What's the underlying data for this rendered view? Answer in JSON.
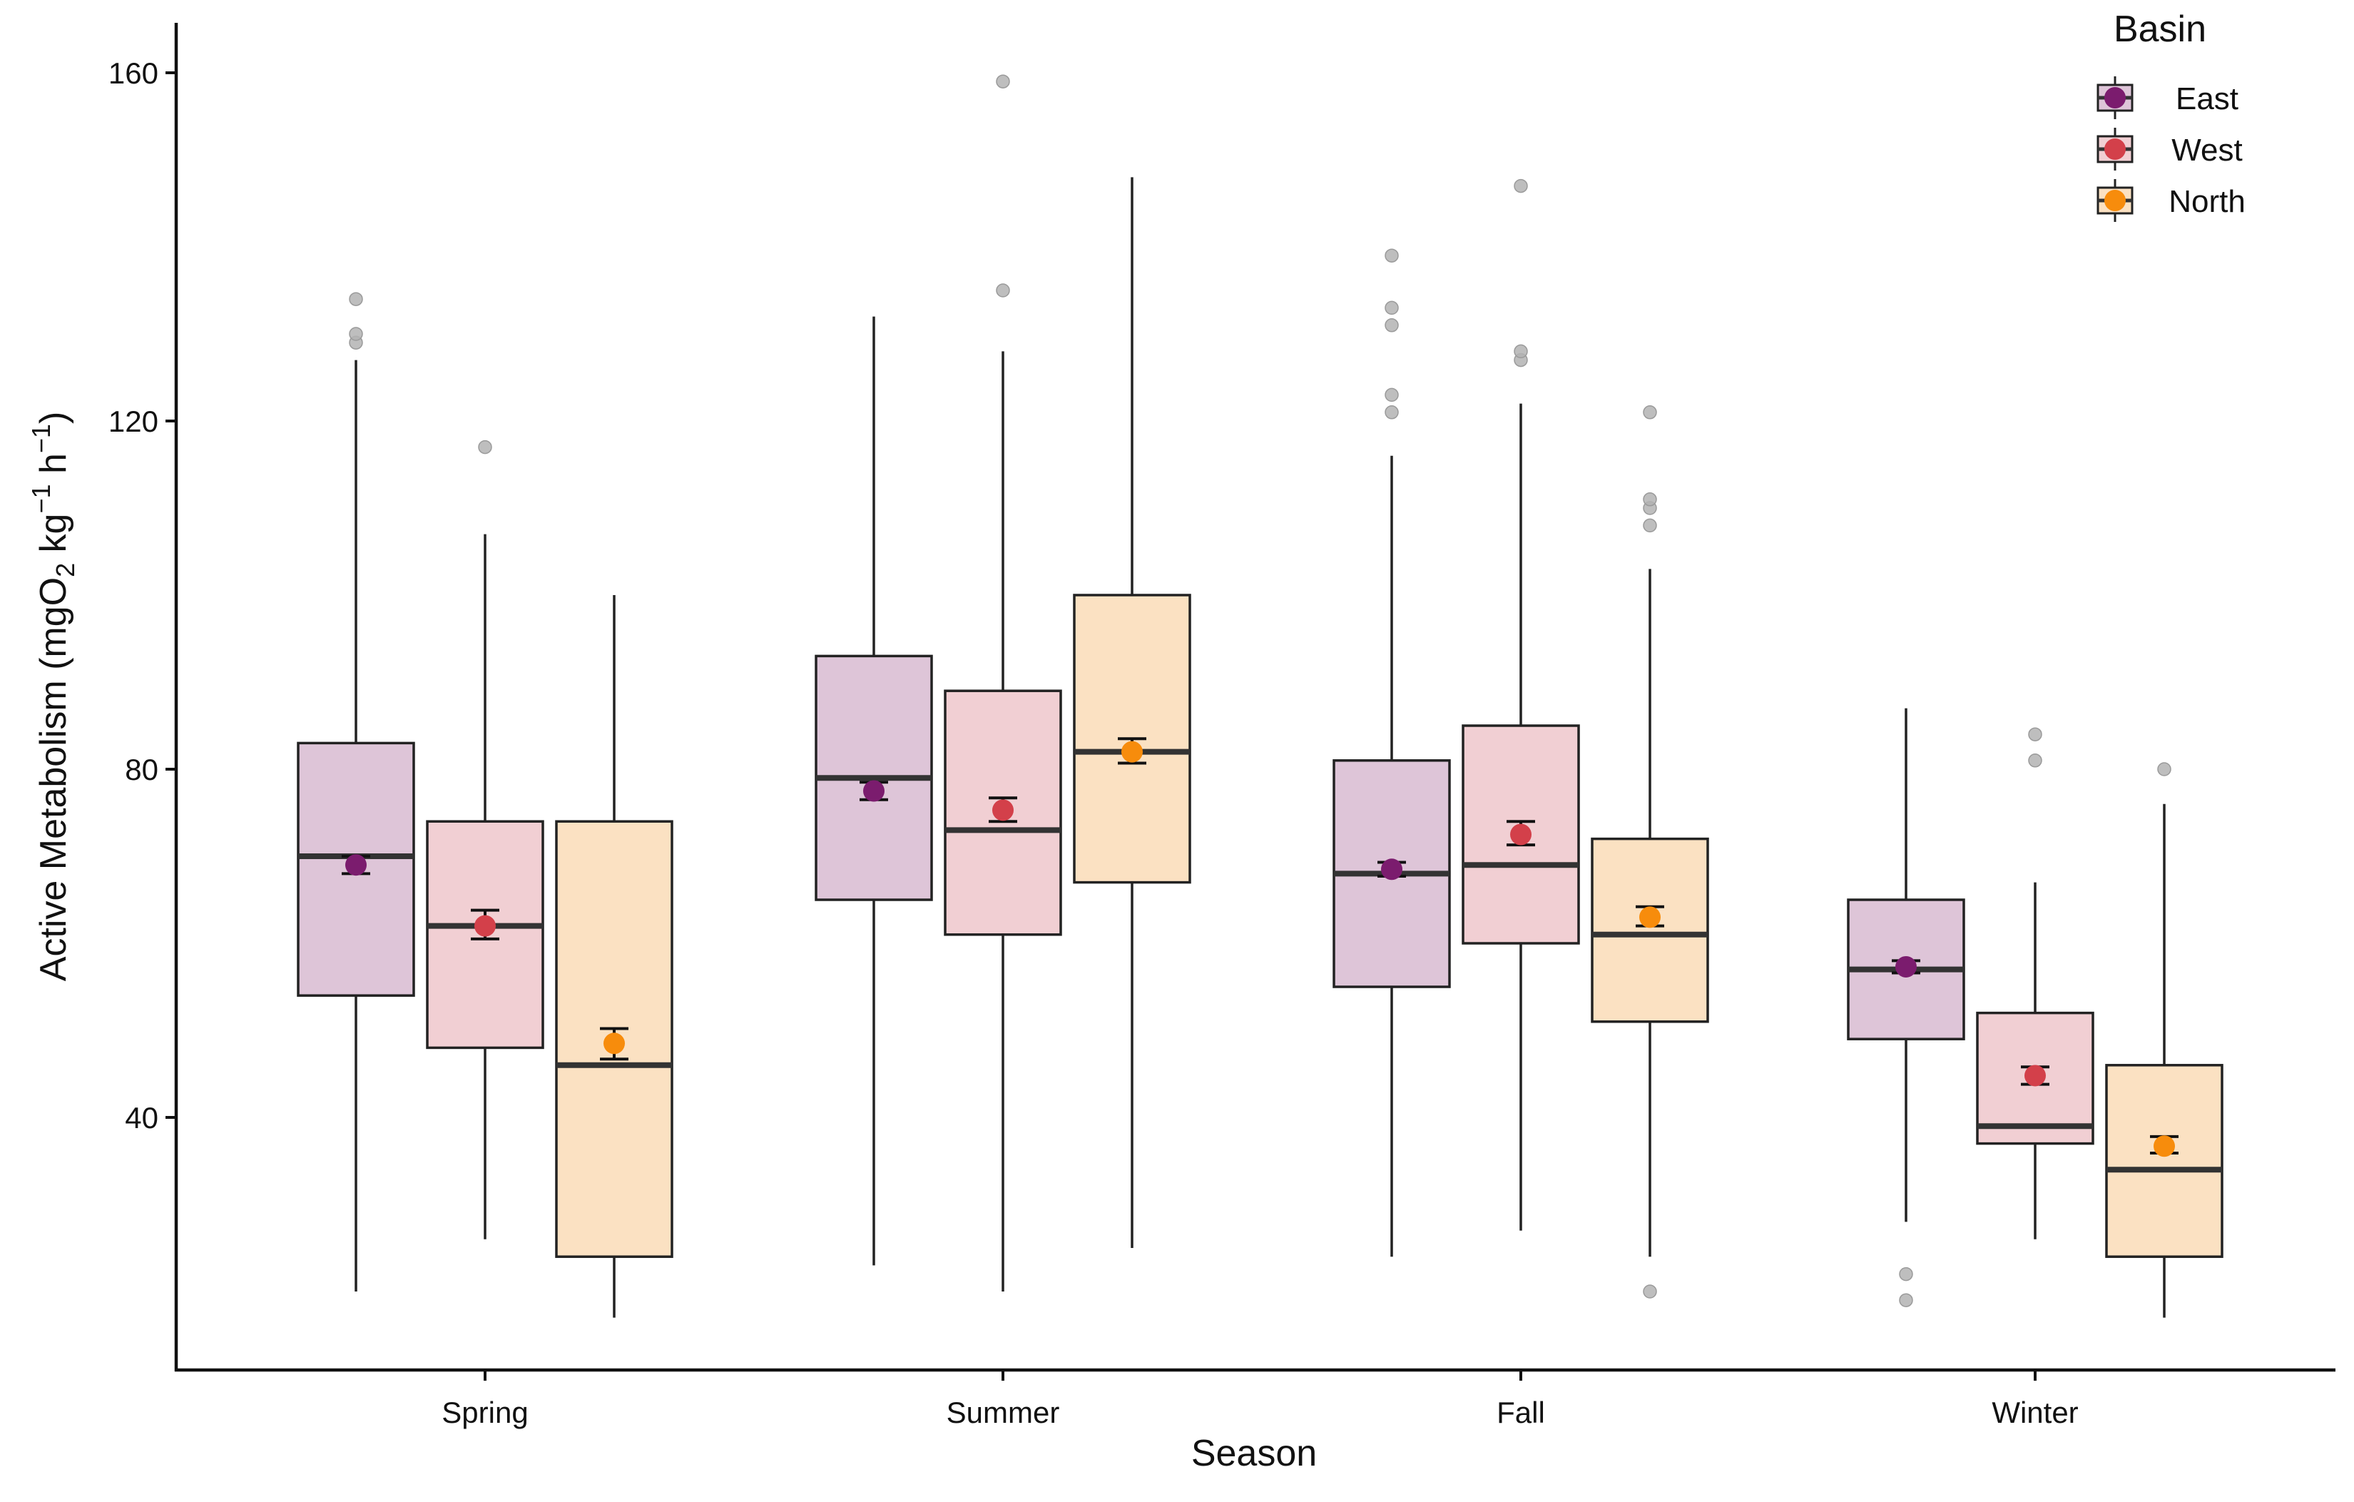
{
  "chart_data": {
    "type": "boxplot",
    "title": "",
    "xlabel": "Season",
    "ylabel_main": "Active Metabolism (mgO",
    "ylabel_sub": "2",
    "ylabel_mid": " kg",
    "ylabel_sup1": "−1",
    "ylabel_mid2": " h",
    "ylabel_sup2": "−1",
    "ylabel_end": ")",
    "ylim": [
      10,
      166
    ],
    "yticks": [
      40,
      80,
      120,
      160
    ],
    "categories": [
      "Spring",
      "Summer",
      "Fall",
      "Winter"
    ],
    "legend": {
      "title": "Basin",
      "position": "top-right",
      "entries": [
        "East",
        "West",
        "North"
      ]
    },
    "colors": {
      "East": {
        "fill": "#dec5d8",
        "point": "#7b1c6e"
      },
      "West": {
        "fill": "#f1cfd3",
        "point": "#d3404a"
      },
      "North": {
        "fill": "#fbe1c2",
        "point": "#f78c0c"
      },
      "outlier": "#b3b3b3",
      "line": "#222222"
    },
    "series": [
      {
        "name": "East",
        "boxes": [
          {
            "min": 20,
            "q1": 54,
            "median": 70,
            "q3": 83,
            "max": 127,
            "mean": 69,
            "err_low": 68,
            "err_high": 70,
            "outliers": [
              129,
              130,
              134
            ]
          },
          {
            "min": 23,
            "q1": 65,
            "median": 79,
            "q3": 93,
            "max": 132,
            "mean": 77.5,
            "err_low": 76.5,
            "err_high": 78.5,
            "outliers": []
          },
          {
            "min": 24,
            "q1": 55,
            "median": 68,
            "q3": 81,
            "max": 116,
            "mean": 68.5,
            "err_low": 67.7,
            "err_high": 69.3,
            "outliers": [
              121,
              123,
              131,
              133,
              139
            ]
          },
          {
            "min": 28,
            "q1": 49,
            "median": 57,
            "q3": 65,
            "max": 87,
            "mean": 57.3,
            "err_low": 56.6,
            "err_high": 58,
            "outliers": [
              19,
              22
            ]
          }
        ]
      },
      {
        "name": "West",
        "boxes": [
          {
            "min": 26,
            "q1": 48,
            "median": 62,
            "q3": 74,
            "max": 107,
            "mean": 62,
            "err_low": 60.5,
            "err_high": 63.8,
            "outliers": [
              117
            ]
          },
          {
            "min": 20,
            "q1": 61,
            "median": 73,
            "q3": 89,
            "max": 128,
            "mean": 75.3,
            "err_low": 74,
            "err_high": 76.7,
            "outliers": [
              135,
              159
            ]
          },
          {
            "min": 27,
            "q1": 60,
            "median": 69,
            "q3": 85,
            "max": 122,
            "mean": 72.5,
            "err_low": 71.3,
            "err_high": 74,
            "outliers": [
              127,
              128,
              147
            ]
          },
          {
            "min": 26,
            "q1": 37,
            "median": 39,
            "q3": 52,
            "max": 67,
            "mean": 44.8,
            "err_low": 43.8,
            "err_high": 45.8,
            "outliers": [
              81,
              84
            ]
          }
        ]
      },
      {
        "name": "North",
        "boxes": [
          {
            "min": 17,
            "q1": 24,
            "median": 46,
            "q3": 74,
            "max": 100,
            "mean": 48.5,
            "err_low": 46.7,
            "err_high": 50.2,
            "outliers": []
          },
          {
            "min": 25,
            "q1": 67,
            "median": 82,
            "q3": 100,
            "max": 148,
            "mean": 82,
            "err_low": 80.7,
            "err_high": 83.5,
            "outliers": []
          },
          {
            "min": 24,
            "q1": 51,
            "median": 61,
            "q3": 72,
            "max": 103,
            "mean": 63,
            "err_low": 62,
            "err_high": 64.2,
            "outliers": [
              20,
              108,
              110,
              111,
              121
            ]
          },
          {
            "min": 17,
            "q1": 24,
            "median": 34,
            "q3": 46,
            "max": 76,
            "mean": 36.7,
            "err_low": 35.9,
            "err_high": 37.8,
            "outliers": [
              80
            ]
          }
        ]
      }
    ]
  }
}
